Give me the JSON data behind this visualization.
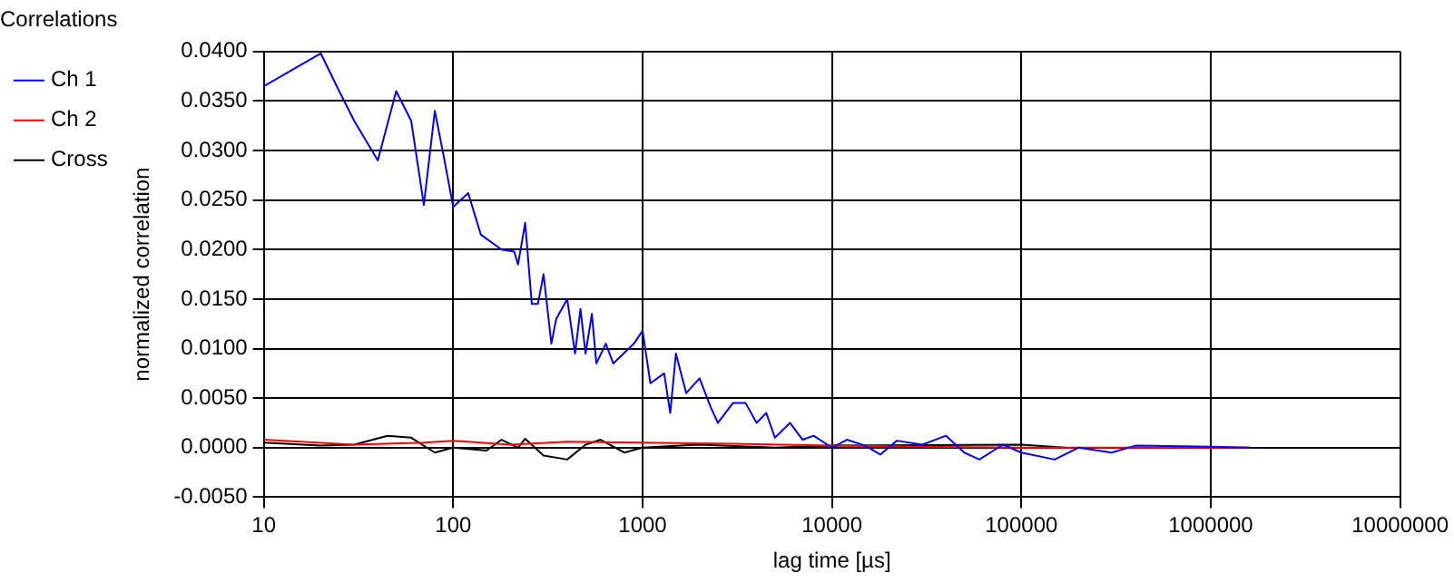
{
  "chart_data": {
    "type": "line",
    "title": "Correlations",
    "xlabel": "lag time [µs]",
    "ylabel": "normalized correlation",
    "log": "x",
    "grid": true,
    "legend": "top left",
    "marker": "none",
    "line_style": "solid",
    "xlim": [
      10,
      10000000
    ],
    "xticks": [
      10,
      100,
      1000,
      10000,
      100000,
      1000000,
      10000000
    ],
    "ylim": [
      -0.005,
      0.04
    ],
    "yticks": [
      {
        "value": -0.005,
        "label": "-0.0050"
      },
      {
        "value": 0,
        "label": "0.0000"
      },
      {
        "value": 0.005,
        "label": "0.0050"
      },
      {
        "value": 0.01,
        "label": "0.0100"
      },
      {
        "value": 0.015,
        "label": "0.0150"
      },
      {
        "value": 0.02,
        "label": "0.0200"
      },
      {
        "value": 0.025,
        "label": "0.0250"
      },
      {
        "value": 0.03,
        "label": "0.0300"
      },
      {
        "value": 0.035,
        "label": "0.0350"
      },
      {
        "value": 0.04,
        "label": "0.0400"
      }
    ],
    "series": [
      {
        "name": "Ch 1",
        "color": "#0000ff",
        "x": [
          10,
          20,
          25,
          30,
          40,
          50,
          60,
          70,
          80,
          90,
          100,
          120,
          140,
          180,
          210,
          220,
          240,
          260,
          280,
          300,
          330,
          350,
          400,
          440,
          470,
          500,
          540,
          570,
          640,
          700,
          900,
          1000,
          1100,
          1300,
          1400,
          1500,
          1700,
          2000,
          2300,
          2500,
          3000,
          3500,
          4000,
          4500,
          5000,
          6000,
          7000,
          8000,
          10000,
          12000,
          15000,
          18000,
          22000,
          30000,
          40000,
          50000,
          60000,
          80000,
          100000,
          150000,
          200000,
          300000,
          400000,
          1000000,
          1600000
        ],
        "values": [
          0.0365,
          0.0398,
          0.036,
          0.033,
          0.029,
          0.036,
          0.033,
          0.0245,
          0.034,
          0.029,
          0.0243,
          0.0257,
          0.0215,
          0.02,
          0.0198,
          0.0185,
          0.0227,
          0.0145,
          0.0145,
          0.0175,
          0.0105,
          0.013,
          0.015,
          0.0095,
          0.014,
          0.0095,
          0.0135,
          0.0085,
          0.0105,
          0.0085,
          0.0105,
          0.0118,
          0.0065,
          0.0075,
          0.0035,
          0.0095,
          0.0055,
          0.007,
          0.004,
          0.0025,
          0.0045,
          0.0045,
          0.0025,
          0.0035,
          0.001,
          0.0025,
          0.0008,
          0.0012,
          0.0,
          0.0008,
          0.0002,
          -0.0007,
          0.0007,
          0.0003,
          0.0012,
          -0.0005,
          -0.0012,
          0.0003,
          -0.0005,
          -0.0012,
          0.0,
          -0.0005,
          0.0002,
          0.0001,
          0.0
        ]
      },
      {
        "name": "Ch 2",
        "color": "#ff0000",
        "x": [
          10,
          30,
          70,
          100,
          200,
          400,
          1000,
          3000,
          10000,
          100000,
          1600000
        ],
        "values": [
          0.0008,
          0.0003,
          0.0005,
          0.0007,
          0.0003,
          0.0006,
          0.0005,
          0.0004,
          0.0002,
          0.0,
          0.0
        ]
      },
      {
        "name": "Cross",
        "color": "#000000",
        "x": [
          10,
          20,
          30,
          45,
          60,
          80,
          100,
          150,
          180,
          220,
          240,
          300,
          400,
          500,
          600,
          800,
          1000,
          2000,
          5000,
          10000,
          100000,
          170000
        ],
        "values": [
          0.0005,
          0.0002,
          0.0003,
          0.0012,
          0.001,
          -0.0005,
          0.0,
          -0.0003,
          0.0008,
          0.0,
          0.0009,
          -0.0008,
          -0.0012,
          0.0003,
          0.0008,
          -0.0005,
          0.0,
          0.0003,
          0.0,
          0.0002,
          0.0003,
          0.0
        ]
      }
    ]
  }
}
